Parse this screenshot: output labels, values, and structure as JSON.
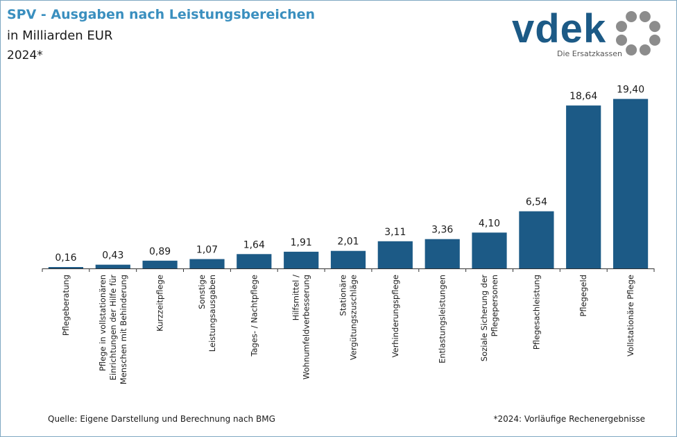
{
  "header": {
    "title": "SPV - Ausgaben nach Leistungsbereichen",
    "subtitle": "in Milliarden EUR",
    "year": "2024*"
  },
  "logo": {
    "text": "vdek",
    "tagline": "Die Ersatzkassen",
    "icon": "circle-of-dots-icon"
  },
  "footer": {
    "source": "Quelle: Eigene Darstellung und Berechnung nach BMG",
    "note": "*2024: Vorläufige Rechenergebnisse"
  },
  "chart_data": {
    "type": "bar",
    "title": "SPV - Ausgaben nach Leistungsbereichen",
    "subtitle": "in Milliarden EUR",
    "xlabel": "",
    "ylabel": "",
    "ylim": [
      0,
      20
    ],
    "grid": false,
    "bar_color": "#1c5a86",
    "categories": [
      [
        "Pflegeberatung"
      ],
      [
        "Pflege in vollstationären",
        "Einrichtungen der Hilfe für",
        "Menschen mit Behinderung"
      ],
      [
        "Kurzzeitpflege"
      ],
      [
        "Sonstige",
        "Leistungsausgaben"
      ],
      [
        "Tages- / Nachtpflege"
      ],
      [
        "Hilfsmittel /",
        "Wohnumfeldverbesserung"
      ],
      [
        "Stationäre",
        "Vergütungszuschläge"
      ],
      [
        "Verhinderungspflege"
      ],
      [
        "Entlastungsleistungen"
      ],
      [
        "Soziale Sicherung der",
        "Pflegepersonen"
      ],
      [
        "Pflegesachleistung"
      ],
      [
        "Pflegegeld"
      ],
      [
        "Vollstationäre Pflege"
      ]
    ],
    "values": [
      0.16,
      0.43,
      0.89,
      1.07,
      1.64,
      1.91,
      2.01,
      3.11,
      3.36,
      4.1,
      6.54,
      18.64,
      19.4
    ],
    "value_labels": [
      "0,16",
      "0,43",
      "0,89",
      "1,07",
      "1,64",
      "1,91",
      "2,01",
      "3,11",
      "3,36",
      "4,10",
      "6,54",
      "18,64",
      "19,40"
    ]
  }
}
